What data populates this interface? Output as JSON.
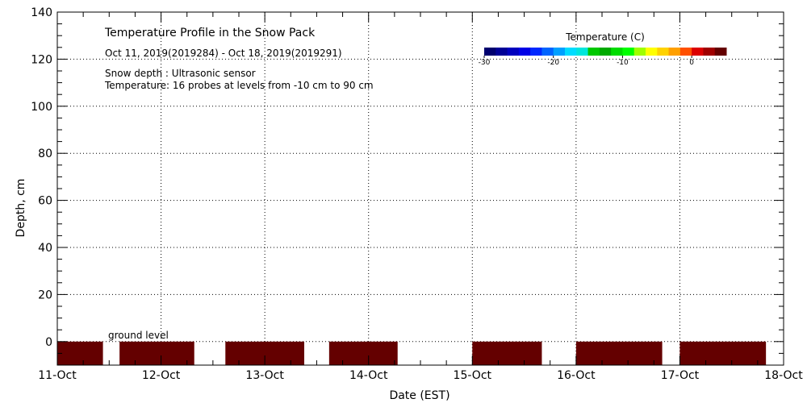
{
  "chart_data": {
    "type": "heatmap",
    "title": "Temperature Profile in the Snow Pack",
    "subtitle": "Oct 11, 2019(2019284) - Oct 18, 2019(2019291)",
    "notes": [
      "Snow depth : Ultrasonic sensor",
      "Temperature: 16 probes at levels from -10 cm to 90 cm"
    ],
    "xlabel": "Date (EST)",
    "ylabel": "Depth, cm",
    "x_ticks": [
      "11-Oct",
      "12-Oct",
      "13-Oct",
      "14-Oct",
      "15-Oct",
      "16-Oct",
      "17-Oct",
      "18-Oct"
    ],
    "xlim_days": [
      11,
      18
    ],
    "ylim": [
      -10,
      140
    ],
    "y_ticks": [
      0,
      20,
      40,
      60,
      80,
      100,
      120,
      140
    ],
    "grid": true,
    "ground_label": "ground level",
    "colorbar": {
      "title": "Temperature (C)",
      "tick_labels": [
        "-30",
        "-20",
        "-10",
        "0"
      ],
      "range": [
        -30,
        5
      ],
      "colors": [
        "#00006e",
        "#000096",
        "#0000be",
        "#0000e6",
        "#0028ff",
        "#0064ff",
        "#00a0ff",
        "#00dcff",
        "#00e6dc",
        "#00c800",
        "#00aa00",
        "#00dc00",
        "#00ff00",
        "#a0ff00",
        "#ffff00",
        "#ffd200",
        "#ffa000",
        "#ff5000",
        "#dc0000",
        "#a00000",
        "#640000"
      ]
    },
    "series": [
      {
        "depth_range_cm": [
          -10,
          0
        ],
        "color": "#640000",
        "segments_days": [
          [
            11.0,
            11.44
          ],
          [
            11.6,
            12.32
          ],
          [
            12.62,
            13.38
          ],
          [
            13.62,
            14.28
          ],
          [
            15.0,
            15.67
          ],
          [
            16.0,
            16.83
          ],
          [
            17.0,
            17.83
          ]
        ]
      }
    ]
  }
}
